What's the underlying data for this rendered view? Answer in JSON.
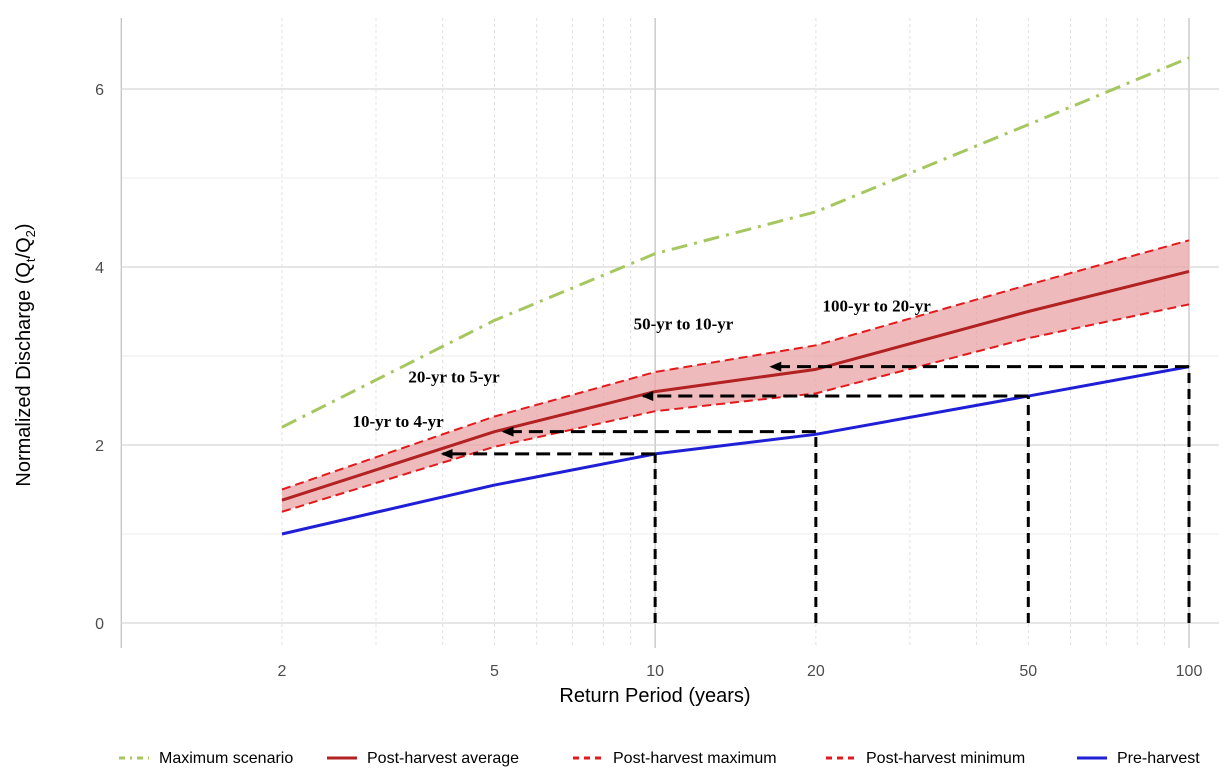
{
  "chart_data": {
    "type": "line",
    "title": "",
    "xlabel": "Return Period (years)",
    "ylabel": "Normalized Discharge (Q",
    "ylabel_sub1": "t",
    "ylabel_mid": "/Q",
    "ylabel_sub2": "2",
    "ylabel_end": ")",
    "x_scale": "log",
    "xlim": [
      1,
      100
    ],
    "ylim": [
      0,
      6.6
    ],
    "x_ticks": [
      2,
      5,
      10,
      20,
      50,
      100
    ],
    "x_tick_labels": [
      "2",
      "5",
      "10",
      "20",
      "50",
      "100"
    ],
    "y_ticks": [
      0,
      2,
      4,
      6
    ],
    "y_tick_labels": [
      "0",
      "2",
      "4",
      "6"
    ],
    "grid": true,
    "legend_position": "bottom",
    "x": [
      2,
      5,
      10,
      20,
      50,
      100
    ],
    "series": [
      {
        "name": "Maximum scenario",
        "color": "#a6c760",
        "style": "dashdot",
        "values": [
          2.2,
          3.4,
          4.15,
          4.62,
          5.6,
          6.35
        ]
      },
      {
        "name": "Post-harvest average",
        "color": "#b22222",
        "style": "solid",
        "values": [
          1.38,
          2.15,
          2.6,
          2.85,
          3.5,
          3.95
        ]
      },
      {
        "name": "Post-harvest maximum",
        "color": "#e31a1c",
        "style": "dashed",
        "values": [
          1.5,
          2.32,
          2.82,
          3.12,
          3.8,
          4.3
        ]
      },
      {
        "name": "Post-harvest minimum",
        "color": "#e31a1c",
        "style": "dashed",
        "values": [
          1.25,
          1.98,
          2.38,
          2.58,
          3.2,
          3.58
        ]
      },
      {
        "name": "Pre-harvest",
        "color": "#1f1fd6",
        "style": "solid",
        "values": [
          1.0,
          1.55,
          1.9,
          2.12,
          2.55,
          2.88
        ]
      }
    ],
    "ribbon": {
      "color": "#e9a3a6",
      "lower_series": "Post-harvest minimum",
      "upper_series": "Post-harvest maximum"
    },
    "arrows": [
      {
        "from_x": 10,
        "y": 1.9,
        "to_x": 4,
        "label": "10-yr to 4-yr",
        "label_x": 3.3,
        "label_y": 2.2
      },
      {
        "from_x": 20,
        "y": 2.15,
        "to_x": 5.2,
        "label": "20-yr to 5-yr",
        "label_x": 4.2,
        "label_y": 2.7
      },
      {
        "from_x": 50,
        "y": 2.55,
        "to_x": 9.5,
        "label": "50-yr to 10-yr",
        "label_x": 11.3,
        "label_y": 3.3
      },
      {
        "from_x": 100,
        "y": 2.88,
        "to_x": 16.5,
        "label": "100-yr to 20-yr",
        "label_x": 26,
        "label_y": 3.5
      }
    ],
    "vertical_drops": [
      {
        "x": 10,
        "y_top": 1.9
      },
      {
        "x": 20,
        "y_top": 2.15
      },
      {
        "x": 50,
        "y_top": 2.55
      },
      {
        "x": 100,
        "y_top": 2.88
      }
    ]
  }
}
